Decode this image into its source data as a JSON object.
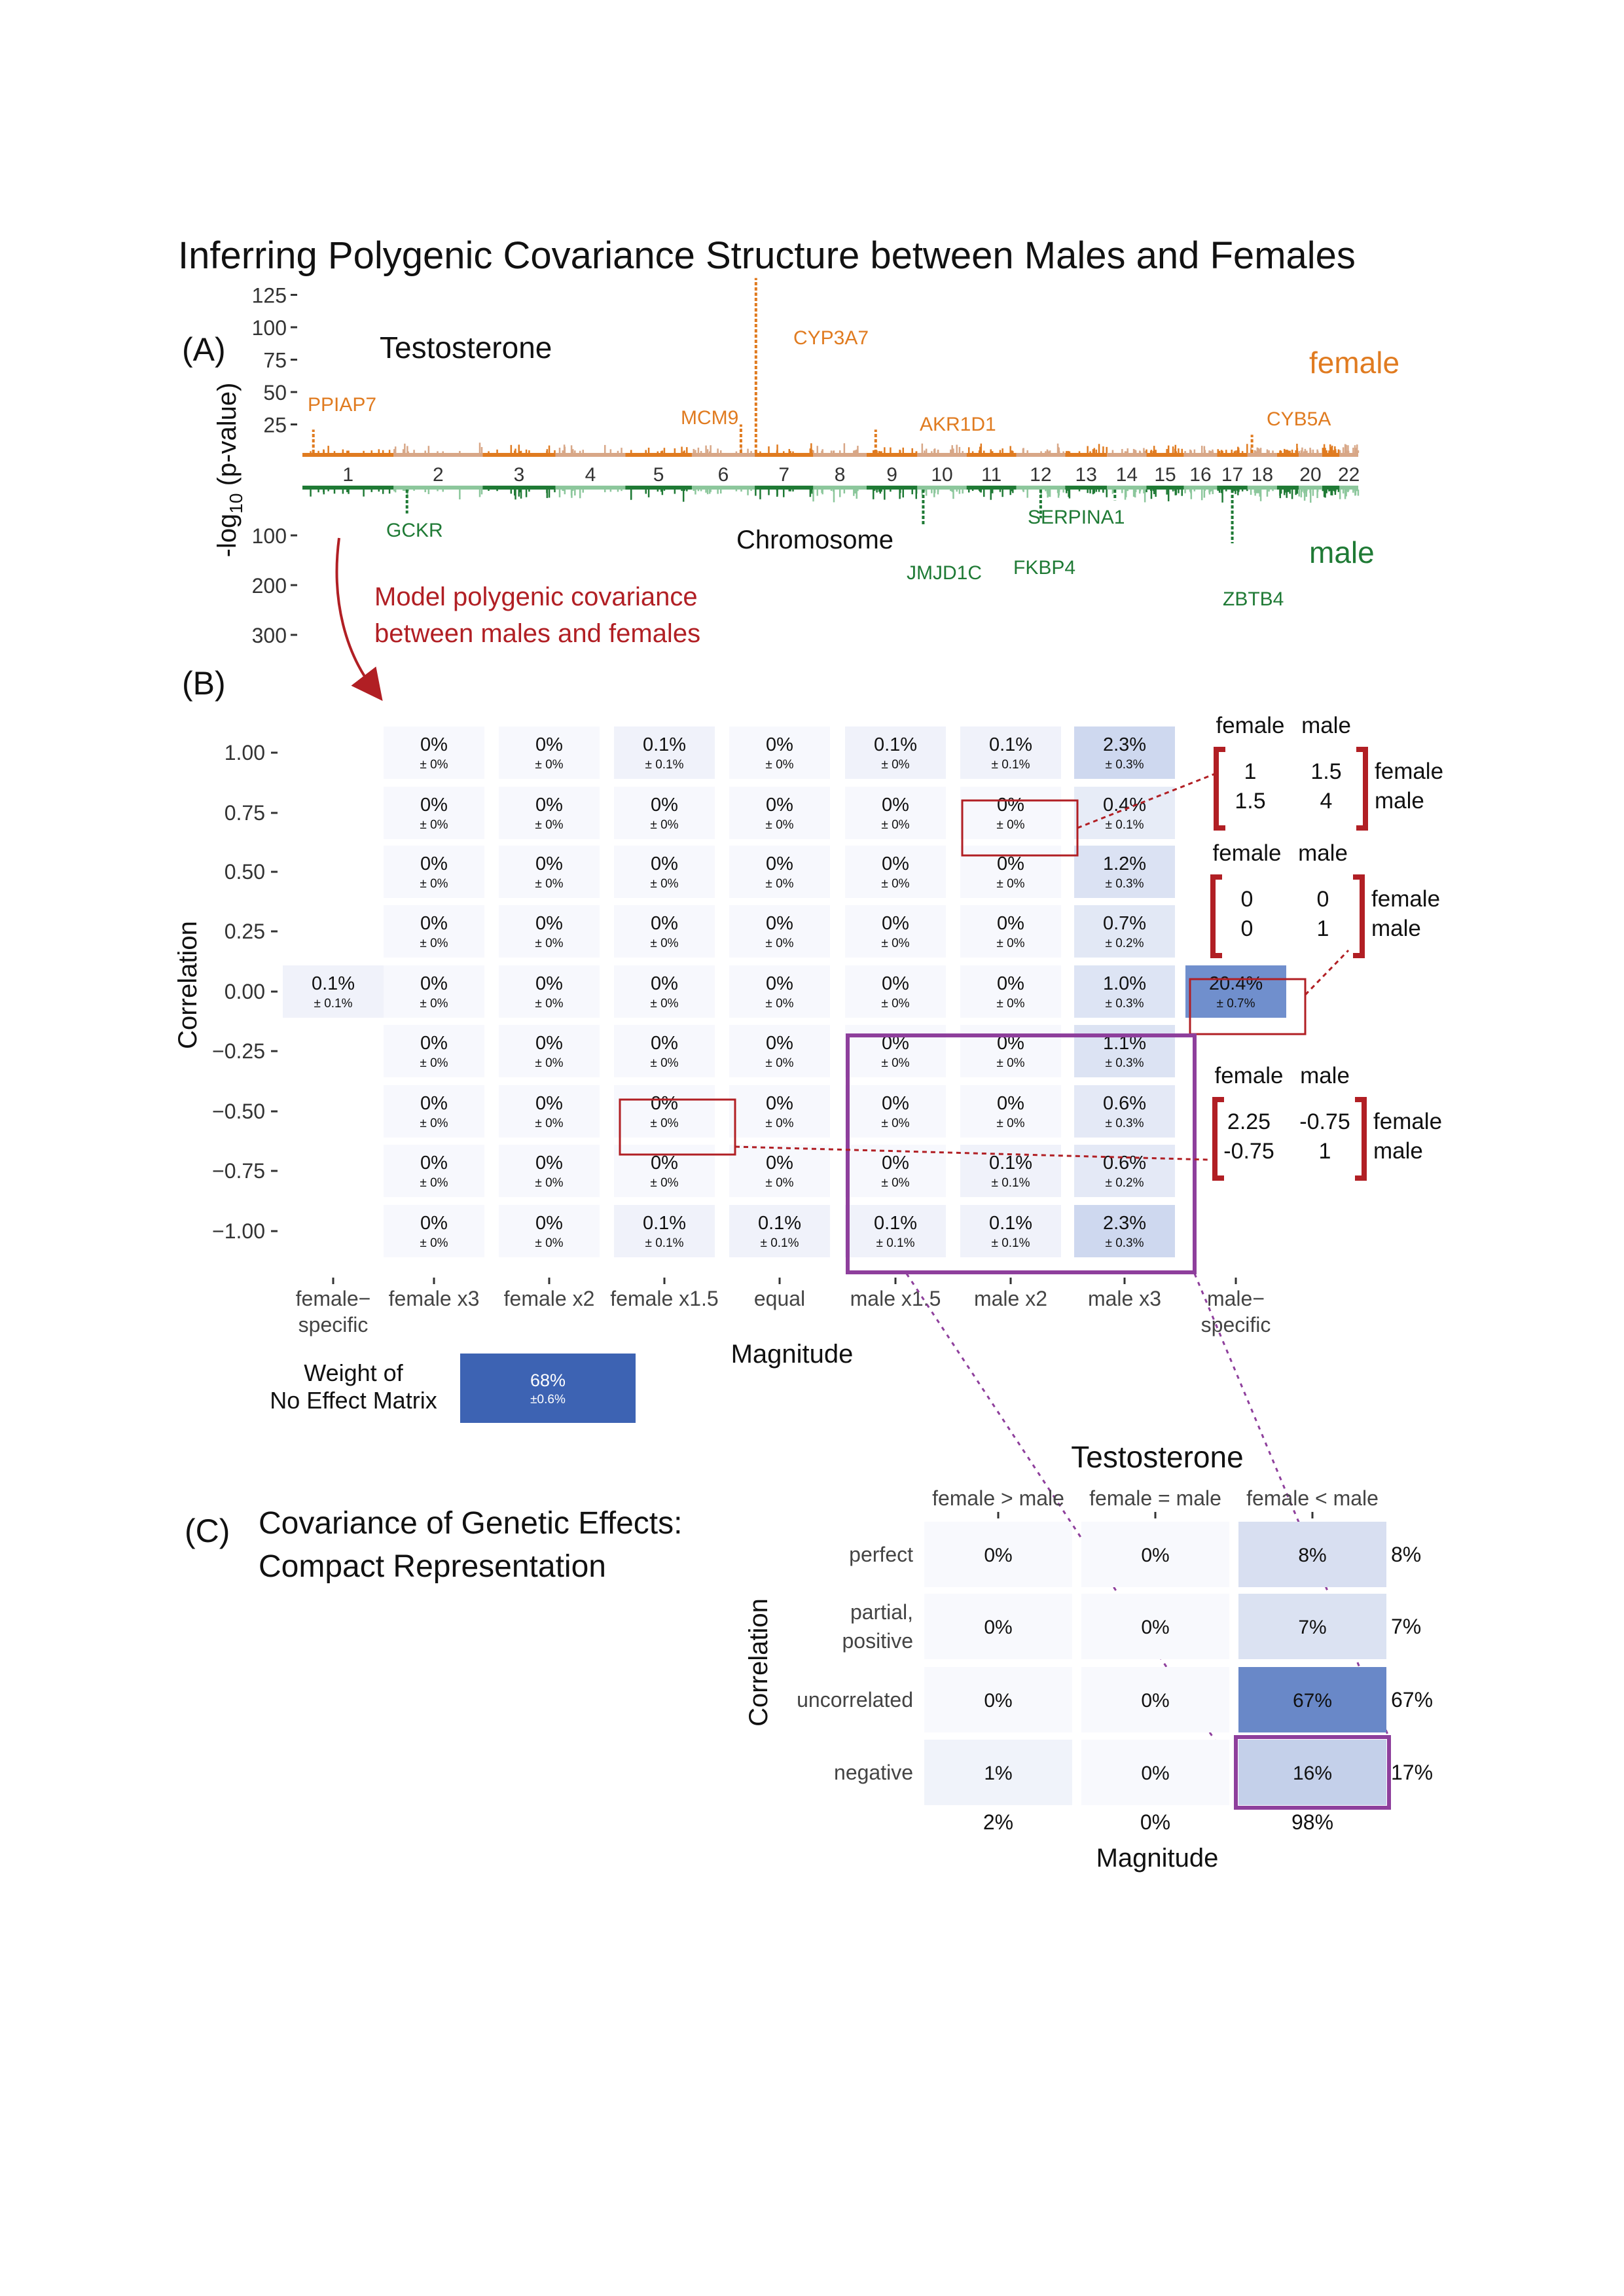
{
  "title": "Inferring Polygenic Covariance Structure between Males and Females",
  "colors": {
    "female": "#e07b20",
    "female_light": "#d8a787",
    "male": "#1f7a35",
    "male_light": "#8cc79c",
    "highlight_red": "#b11f24",
    "purple": "#8e3f9c",
    "heat_low": "#f7f8fd",
    "heat_high": "#3d63b3"
  },
  "panel_a": {
    "label": "(A)",
    "trait": "Testosterone",
    "female_label": "female",
    "male_label": "male",
    "y_axis_label": "-log10 (p-value)",
    "y_ticks_top": [
      "125",
      "100",
      "75",
      "50",
      "25"
    ],
    "y_ticks_bottom": [
      "100",
      "200",
      "300"
    ],
    "x_axis_label": "Chromosome",
    "chromosomes": [
      "1",
      "2",
      "3",
      "4",
      "5",
      "6",
      "7",
      "8",
      "9",
      "10",
      "11",
      "12",
      "13",
      "14",
      "15",
      "16",
      "17",
      "18",
      "20",
      "22"
    ],
    "female_genes": [
      "PPIAP7",
      "MCM9",
      "CYP3A7",
      "AKR1D1",
      "CYB5A"
    ],
    "male_genes": [
      "GCKR",
      "JMJD1C",
      "FKBP4",
      "SERPINA1",
      "ZBTB4"
    ],
    "arrow_note": [
      "Model polygenic covariance",
      "between males and females"
    ]
  },
  "panel_b": {
    "label": "(B)",
    "y_axis_label": "Correlation",
    "x_axis_label": "Magnitude",
    "y_ticks": [
      "1.00",
      "0.75",
      "0.50",
      "0.25",
      "0.00",
      "-0.25",
      "-0.50",
      "-0.75",
      "-1.00"
    ],
    "x_ticks": [
      "female−\nspecific",
      "female x3",
      "female x2",
      "female x1.5",
      "equal",
      "male x1.5",
      "male x2",
      "male x3",
      "male−\nspecific"
    ],
    "grid": [
      [
        null,
        [
          "0%",
          "± 0%"
        ],
        [
          "0%",
          "± 0%"
        ],
        [
          "0.1%",
          "± 0.1%"
        ],
        [
          "0%",
          "± 0%"
        ],
        [
          "0.1%",
          "± 0%"
        ],
        [
          "0.1%",
          "± 0.1%"
        ],
        [
          "2.3%",
          "± 0.3%"
        ],
        null
      ],
      [
        null,
        [
          "0%",
          "± 0%"
        ],
        [
          "0%",
          "± 0%"
        ],
        [
          "0%",
          "± 0%"
        ],
        [
          "0%",
          "± 0%"
        ],
        [
          "0%",
          "± 0%"
        ],
        [
          "0%",
          "± 0%"
        ],
        [
          "0.4%",
          "± 0.1%"
        ],
        null
      ],
      [
        null,
        [
          "0%",
          "± 0%"
        ],
        [
          "0%",
          "± 0%"
        ],
        [
          "0%",
          "± 0%"
        ],
        [
          "0%",
          "± 0%"
        ],
        [
          "0%",
          "± 0%"
        ],
        [
          "0%",
          "± 0%"
        ],
        [
          "1.2%",
          "± 0.3%"
        ],
        null
      ],
      [
        null,
        [
          "0%",
          "± 0%"
        ],
        [
          "0%",
          "± 0%"
        ],
        [
          "0%",
          "± 0%"
        ],
        [
          "0%",
          "± 0%"
        ],
        [
          "0%",
          "± 0%"
        ],
        [
          "0%",
          "± 0%"
        ],
        [
          "0.7%",
          "± 0.2%"
        ],
        null
      ],
      [
        [
          "0.1%",
          "± 0.1%"
        ],
        [
          "0%",
          "± 0%"
        ],
        [
          "0%",
          "± 0%"
        ],
        [
          "0%",
          "± 0%"
        ],
        [
          "0%",
          "± 0%"
        ],
        [
          "0%",
          "± 0%"
        ],
        [
          "0%",
          "± 0%"
        ],
        [
          "1.0%",
          "± 0.3%"
        ],
        [
          "20.4%",
          "± 0.7%"
        ]
      ],
      [
        null,
        [
          "0%",
          "± 0%"
        ],
        [
          "0%",
          "± 0%"
        ],
        [
          "0%",
          "± 0%"
        ],
        [
          "0%",
          "± 0%"
        ],
        [
          "0%",
          "± 0%"
        ],
        [
          "0%",
          "± 0%"
        ],
        [
          "1.1%",
          "± 0.3%"
        ],
        null
      ],
      [
        null,
        [
          "0%",
          "± 0%"
        ],
        [
          "0%",
          "± 0%"
        ],
        [
          "0%",
          "± 0%"
        ],
        [
          "0%",
          "± 0%"
        ],
        [
          "0%",
          "± 0%"
        ],
        [
          "0%",
          "± 0%"
        ],
        [
          "0.6%",
          "± 0.3%"
        ],
        null
      ],
      [
        null,
        [
          "0%",
          "± 0%"
        ],
        [
          "0%",
          "± 0%"
        ],
        [
          "0%",
          "± 0%"
        ],
        [
          "0%",
          "± 0%"
        ],
        [
          "0%",
          "± 0%"
        ],
        [
          "0.1%",
          "± 0.1%"
        ],
        [
          "0.6%",
          "± 0.2%"
        ],
        null
      ],
      [
        null,
        [
          "0%",
          "± 0%"
        ],
        [
          "0%",
          "± 0%"
        ],
        [
          "0.1%",
          "± 0.1%"
        ],
        [
          "0.1%",
          "± 0.1%"
        ],
        [
          "0.1%",
          "± 0.1%"
        ],
        [
          "0.1%",
          "± 0.1%"
        ],
        [
          "2.3%",
          "± 0.3%"
        ],
        null
      ]
    ],
    "no_effect_label": [
      "Weight of",
      "No Effect Matrix"
    ],
    "no_effect_value": "68%",
    "no_effect_error": "±0.6%",
    "matrices": [
      {
        "header": [
          "female",
          "male"
        ],
        "rows": [
          [
            "1",
            "1.5"
          ],
          [
            "1.5",
            "4"
          ]
        ],
        "row_labels": [
          "female",
          "male"
        ]
      },
      {
        "header": [
          "female",
          "male"
        ],
        "rows": [
          [
            "0",
            "0"
          ],
          [
            "0",
            "1"
          ]
        ],
        "row_labels": [
          "female",
          "male"
        ]
      },
      {
        "header": [
          "female",
          "male"
        ],
        "rows": [
          [
            "2.25",
            "-0.75"
          ],
          [
            "-0.75",
            "1"
          ]
        ],
        "row_labels": [
          "female",
          "male"
        ]
      }
    ]
  },
  "panel_c": {
    "label": "(C)",
    "heading": [
      "Covariance of Genetic Effects:",
      "Compact Representation"
    ],
    "title": "Testosterone",
    "col_headers": [
      "female > male",
      "female = male",
      "female < male"
    ],
    "row_labels": [
      [
        "perfect"
      ],
      [
        "partial,",
        "positive"
      ],
      [
        "uncorrelated"
      ],
      [
        "negative"
      ]
    ],
    "cells": [
      [
        "0%",
        "0%",
        "8%"
      ],
      [
        "0%",
        "0%",
        "7%"
      ],
      [
        "0%",
        "0%",
        "67%"
      ],
      [
        "1%",
        "0%",
        "16%"
      ]
    ],
    "cell_values": [
      [
        0,
        0,
        8
      ],
      [
        0,
        0,
        7
      ],
      [
        0,
        0,
        67
      ],
      [
        1,
        0,
        16
      ]
    ],
    "row_totals": [
      "8%",
      "7%",
      "67%",
      "17%"
    ],
    "col_totals": [
      "2%",
      "0%",
      "98%"
    ],
    "x_axis_label": "Magnitude",
    "y_axis_label": "Correlation"
  },
  "chart_data": [
    {
      "type": "heatmap",
      "title": "",
      "xlabel": "Magnitude",
      "ylabel": "Correlation",
      "x": [
        "female-specific",
        "female x3",
        "female x2",
        "female x1.5",
        "equal",
        "male x1.5",
        "male x2",
        "male x3",
        "male-specific"
      ],
      "y": [
        1.0,
        0.75,
        0.5,
        0.25,
        0.0,
        -0.25,
        -0.5,
        -0.75,
        -1.0
      ],
      "values": [
        [
          null,
          0,
          0,
          0.1,
          0,
          0.1,
          0.1,
          2.3,
          null
        ],
        [
          null,
          0,
          0,
          0,
          0,
          0,
          0,
          0.4,
          null
        ],
        [
          null,
          0,
          0,
          0,
          0,
          0,
          0,
          1.2,
          null
        ],
        [
          null,
          0,
          0,
          0,
          0,
          0,
          0,
          0.7,
          null
        ],
        [
          0.1,
          0,
          0,
          0,
          0,
          0,
          0,
          1.0,
          20.4
        ],
        [
          null,
          0,
          0,
          0,
          0,
          0,
          0,
          1.1,
          null
        ],
        [
          null,
          0,
          0,
          0,
          0,
          0,
          0,
          0.6,
          null
        ],
        [
          null,
          0,
          0,
          0,
          0,
          0,
          0.1,
          0.6,
          null
        ],
        [
          null,
          0,
          0,
          0.1,
          0.1,
          0.1,
          0.1,
          2.3,
          null
        ]
      ],
      "no_effect_weight": 68
    },
    {
      "type": "heatmap",
      "title": "Testosterone",
      "xlabel": "Magnitude",
      "ylabel": "Correlation",
      "x": [
        "female > male",
        "female = male",
        "female < male"
      ],
      "y": [
        "perfect",
        "partial, positive",
        "uncorrelated",
        "negative"
      ],
      "values": [
        [
          0,
          0,
          8
        ],
        [
          0,
          0,
          7
        ],
        [
          0,
          0,
          67
        ],
        [
          1,
          0,
          16
        ]
      ],
      "row_totals": [
        8,
        7,
        67,
        17
      ],
      "col_totals": [
        2,
        0,
        98
      ]
    }
  ]
}
